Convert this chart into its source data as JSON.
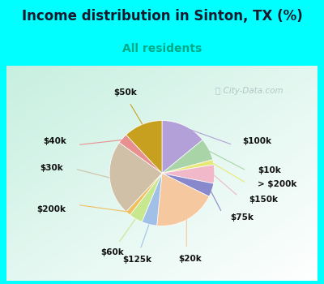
{
  "title": "Income distribution in Sinton, TX (%)",
  "subtitle": "All residents",
  "bg_color": "#00FFFF",
  "watermark": "City-Data.com",
  "slices": [
    {
      "label": "$100k",
      "value": 13.5,
      "color": "#b3a0d8"
    },
    {
      "label": "$10k",
      "value": 6.5,
      "color": "#a8d4a8"
    },
    {
      "label": "> $200k",
      "value": 1.5,
      "color": "#e8e878"
    },
    {
      "label": "$150k",
      "value": 5.5,
      "color": "#f0b8c8"
    },
    {
      "label": "$75k",
      "value": 4.0,
      "color": "#8888cc"
    },
    {
      "label": "$20k",
      "value": 18.5,
      "color": "#f5c8a0"
    },
    {
      "label": "$125k",
      "value": 4.5,
      "color": "#a0c0e8"
    },
    {
      "label": "$60k",
      "value": 4.0,
      "color": "#c8e890"
    },
    {
      "label": "$200k",
      "value": 1.5,
      "color": "#f0c060"
    },
    {
      "label": "$30k",
      "value": 22.0,
      "color": "#d0c0a8"
    },
    {
      "label": "$40k",
      "value": 3.0,
      "color": "#e89090"
    },
    {
      "label": "$50k",
      "value": 11.5,
      "color": "#c8a020"
    }
  ],
  "title_fontsize": 12,
  "subtitle_fontsize": 10,
  "label_fontsize": 7.5
}
